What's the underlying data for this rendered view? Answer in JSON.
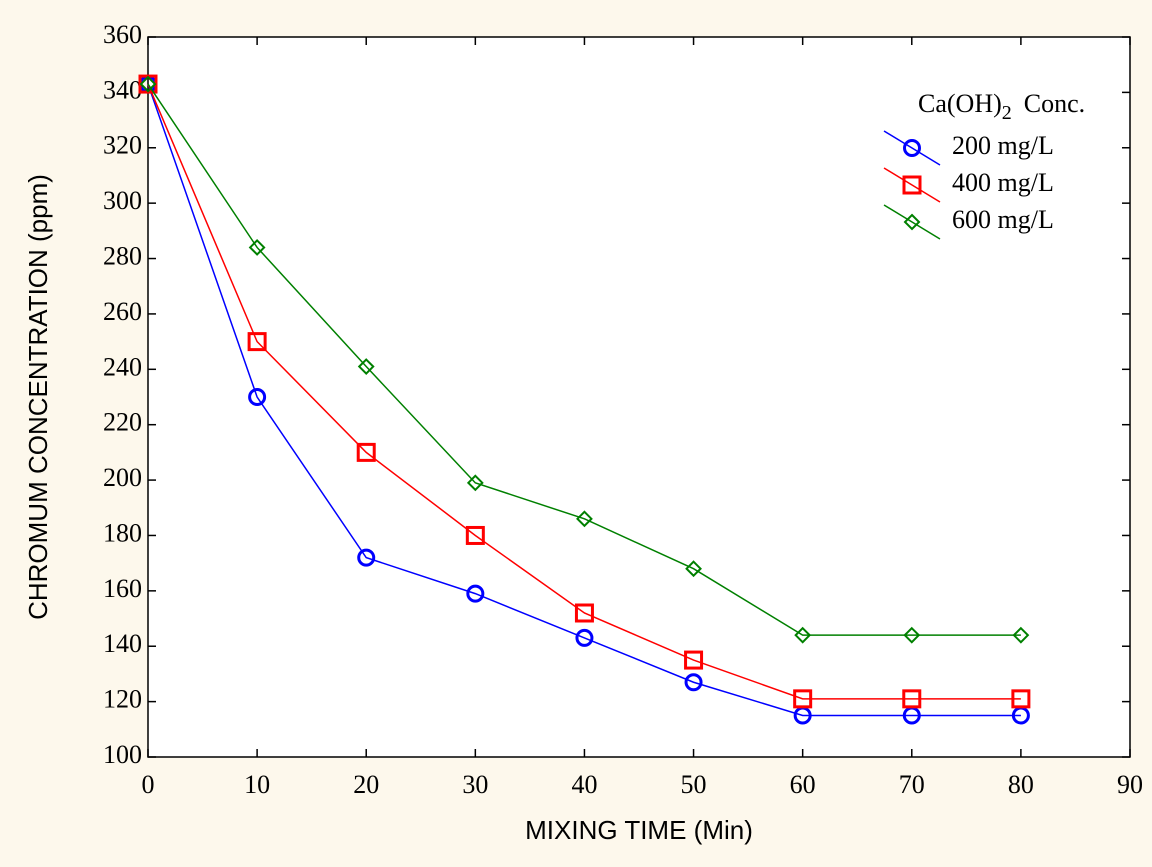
{
  "chart_data": {
    "type": "line",
    "x_label": "MIXING TIME (Min)",
    "y_label": "CHROMUM CONCENTRATION (ppm)",
    "legend_title": {
      "main": "Ca(OH)",
      "sub": "2",
      "rest": "Conc."
    },
    "legend_position": "upper right",
    "x": [
      0,
      10,
      20,
      30,
      40,
      50,
      60,
      70,
      80
    ],
    "series": [
      {
        "name": "200 mg/L",
        "color": "#0000ff",
        "marker": "circle",
        "values": [
          343,
          230,
          172,
          159,
          143,
          127,
          115,
          115,
          115
        ]
      },
      {
        "name": "400 mg/L",
        "color": "#ff0000",
        "marker": "square",
        "values": [
          343,
          250,
          210,
          180,
          152,
          135,
          121,
          121,
          121
        ]
      },
      {
        "name": "600 mg/L",
        "color": "#008000",
        "marker": "diamond",
        "values": [
          343,
          284,
          241,
          199,
          186,
          168,
          144,
          144,
          144
        ]
      }
    ],
    "xlim": [
      0,
      90
    ],
    "xticks": [
      0,
      10,
      20,
      30,
      40,
      50,
      60,
      70,
      80,
      90
    ],
    "ylim": [
      100,
      360
    ],
    "yticks": [
      100,
      120,
      140,
      160,
      180,
      200,
      220,
      240,
      260,
      280,
      300,
      320,
      340,
      360
    ],
    "grid": false
  }
}
